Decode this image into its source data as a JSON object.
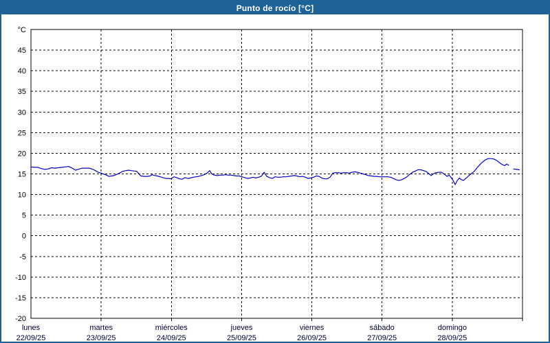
{
  "window": {
    "title": "Punto de rocío [°C]"
  },
  "colors": {
    "titlebar_bg": "#1d6397",
    "titlebar_text": "#ffffff",
    "frame_border": "#1d6397",
    "plot_bg": "#ffffff",
    "grid": "#000000",
    "axis": "#000000",
    "tick_label": "#000000",
    "day_label": "#000033",
    "line": "#0000cc"
  },
  "chart_data": {
    "type": "line",
    "title": "Punto de rocío [°C]",
    "y_unit_label": "°C",
    "ylim": [
      -20,
      50
    ],
    "ytick_step": 5,
    "ytick_labels": [
      "45",
      "40",
      "35",
      "30",
      "25",
      "20",
      "15",
      "10",
      "5",
      "0",
      "-5",
      "-10",
      "-15",
      "-20"
    ],
    "grid": "dashed",
    "legend": "none",
    "hours_per_day": 24,
    "x_days": [
      {
        "name": "lunes",
        "date": "22/09/25"
      },
      {
        "name": "martes",
        "date": "23/09/25"
      },
      {
        "name": "miércoles",
        "date": "24/09/25"
      },
      {
        "name": "jueves",
        "date": "25/09/25"
      },
      {
        "name": "viernes",
        "date": "26/09/25"
      },
      {
        "name": "sábado",
        "date": "27/09/25"
      },
      {
        "name": "domingo",
        "date": "28/09/25"
      }
    ],
    "series": [
      {
        "name": "Punto de rocío",
        "unit": "°C",
        "color": "#0000cc",
        "segments": [
          [
            [
              0,
              16.7
            ],
            [
              1.2,
              16.6
            ],
            [
              2.4,
              16.6
            ],
            [
              3.5,
              16.3
            ],
            [
              4.7,
              16.1
            ],
            [
              5.9,
              16.2
            ],
            [
              7.1,
              16.5
            ],
            [
              8.2,
              16.4
            ],
            [
              9.4,
              16.5
            ],
            [
              10.6,
              16.6
            ],
            [
              11.8,
              16.7
            ],
            [
              12.9,
              16.8
            ],
            [
              14.1,
              16.4
            ],
            [
              15.3,
              15.9
            ],
            [
              16.5,
              16.2
            ],
            [
              17.6,
              16.4
            ],
            [
              18.8,
              16.4
            ],
            [
              20,
              16.4
            ],
            [
              21.2,
              16.1
            ],
            [
              22.3,
              15.7
            ],
            [
              23,
              15.4
            ],
            [
              24,
              15.2
            ],
            [
              24.7,
              15.0
            ],
            [
              25.9,
              14.7
            ],
            [
              26.6,
              14.4
            ],
            [
              27.5,
              14.5
            ],
            [
              28.4,
              14.6
            ],
            [
              29.4,
              14.9
            ],
            [
              30.3,
              15.2
            ],
            [
              31.3,
              15.6
            ],
            [
              32.4,
              15.8
            ],
            [
              33.4,
              15.9
            ],
            [
              34.3,
              15.8
            ],
            [
              35.3,
              15.7
            ],
            [
              36.2,
              15.6
            ],
            [
              36.9,
              15.0
            ],
            [
              37.6,
              14.5
            ],
            [
              38.8,
              14.4
            ],
            [
              39.7,
              14.4
            ],
            [
              40.7,
              14.5
            ],
            [
              41.4,
              14.8
            ],
            [
              42.3,
              14.6
            ],
            [
              43.2,
              14.5
            ],
            [
              44.2,
              14.3
            ],
            [
              45.1,
              14.1
            ],
            [
              46.1,
              13.9
            ],
            [
              47,
              13.9
            ],
            [
              47.9,
              13.8
            ],
            [
              48.9,
              14.3
            ],
            [
              49.8,
              14.1
            ],
            [
              50.8,
              13.8
            ],
            [
              51.7,
              13.7
            ],
            [
              52.6,
              14.1
            ],
            [
              53.6,
              13.9
            ],
            [
              54.5,
              14.0
            ],
            [
              55.5,
              14.2
            ],
            [
              56.4,
              14.3
            ],
            [
              57.3,
              14.4
            ],
            [
              58.3,
              14.6
            ],
            [
              59.2,
              14.8
            ],
            [
              60.2,
              15.2
            ],
            [
              61.1,
              15.8
            ],
            [
              61.8,
              15.0
            ],
            [
              62.7,
              14.7
            ],
            [
              63.7,
              14.6
            ],
            [
              64.6,
              14.7
            ],
            [
              65.6,
              14.7
            ],
            [
              66.5,
              14.8
            ],
            [
              67.4,
              14.7
            ],
            [
              68.4,
              14.7
            ],
            [
              69.3,
              14.6
            ],
            [
              70.3,
              14.5
            ],
            [
              71.2,
              14.5
            ],
            [
              72.1,
              14.3
            ],
            [
              73.1,
              14.1
            ],
            [
              74,
              13.9
            ],
            [
              75,
              14.0
            ],
            [
              75.9,
              14.2
            ],
            [
              76.8,
              14.0
            ],
            [
              77.8,
              14.2
            ],
            [
              78.7,
              14.4
            ],
            [
              79.7,
              15.4
            ],
            [
              80.6,
              14.4
            ],
            [
              81.5,
              14.1
            ],
            [
              82.5,
              13.9
            ],
            [
              83.4,
              14.3
            ],
            [
              84.4,
              14.2
            ],
            [
              85.3,
              14.2
            ],
            [
              86.2,
              14.3
            ],
            [
              87.2,
              14.3
            ],
            [
              88.1,
              14.4
            ],
            [
              89.1,
              14.5
            ],
            [
              90,
              14.6
            ],
            [
              90.9,
              14.5
            ],
            [
              91.9,
              14.3
            ],
            [
              92.8,
              14.4
            ],
            [
              93.8,
              14.2
            ],
            [
              94.7,
              13.9
            ],
            [
              95.6,
              14.0
            ],
            [
              96.6,
              14.2
            ],
            [
              97.5,
              14.5
            ],
            [
              98.5,
              14.4
            ],
            [
              99.4,
              14.0
            ],
            [
              100.3,
              13.8
            ],
            [
              101.3,
              13.8
            ],
            [
              102.2,
              14.2
            ],
            [
              103.2,
              15.2
            ],
            [
              104.1,
              15.3
            ],
            [
              105,
              15.3
            ],
            [
              106,
              15.2
            ],
            [
              106.9,
              15.3
            ],
            [
              107.9,
              15.3
            ],
            [
              108.8,
              15.2
            ],
            [
              109.7,
              15.4
            ],
            [
              110.7,
              15.5
            ],
            [
              111.6,
              15.4
            ],
            [
              112.6,
              15.2
            ],
            [
              113.5,
              15.0
            ],
            [
              114.4,
              14.8
            ],
            [
              115.4,
              14.6
            ],
            [
              116.3,
              14.5
            ],
            [
              117.3,
              14.4
            ],
            [
              118.2,
              14.4
            ],
            [
              119.1,
              14.3
            ],
            [
              120.1,
              14.3
            ],
            [
              121,
              14.3
            ],
            [
              122,
              14.3
            ],
            [
              122.9,
              14.2
            ],
            [
              123.8,
              13.9
            ],
            [
              124.8,
              13.6
            ],
            [
              125.7,
              13.4
            ],
            [
              126.7,
              13.6
            ],
            [
              127.6,
              13.9
            ],
            [
              128.5,
              14.3
            ],
            [
              129.5,
              14.9
            ],
            [
              130.4,
              15.4
            ],
            [
              131.4,
              15.7
            ],
            [
              132.3,
              16.0
            ],
            [
              133.2,
              16.0
            ],
            [
              134.2,
              15.8
            ],
            [
              135.1,
              15.6
            ],
            [
              136.1,
              15.0
            ],
            [
              136.8,
              14.6
            ],
            [
              137.5,
              15.0
            ],
            [
              138.4,
              15.3
            ],
            [
              139.4,
              15.4
            ],
            [
              140.3,
              15.4
            ],
            [
              141.2,
              15.0
            ],
            [
              142.2,
              14.4
            ],
            [
              142.9,
              14.7
            ],
            [
              143.6,
              14.1
            ],
            [
              144.3,
              13.4
            ],
            [
              145,
              12.4
            ],
            [
              145.7,
              13.4
            ],
            [
              146.4,
              14.0
            ],
            [
              147.1,
              13.6
            ],
            [
              147.8,
              13.4
            ],
            [
              148.8,
              14.0
            ],
            [
              149.7,
              14.6
            ],
            [
              150.6,
              15.1
            ],
            [
              151.6,
              15.7
            ],
            [
              152.5,
              16.5
            ],
            [
              153.5,
              17.3
            ],
            [
              154.4,
              17.9
            ],
            [
              155.3,
              18.4
            ],
            [
              156.3,
              18.7
            ],
            [
              157.2,
              18.7
            ],
            [
              158.2,
              18.6
            ],
            [
              159.1,
              18.3
            ],
            [
              160,
              17.8
            ],
            [
              161,
              17.3
            ],
            [
              161.9,
              17.0
            ],
            [
              162.6,
              17.4
            ],
            [
              163.3,
              17.1
            ]
          ],
          [
            [
              165,
              16.2
            ],
            [
              165.9,
              16.1
            ],
            [
              166.9,
              16.0
            ]
          ]
        ]
      }
    ]
  }
}
